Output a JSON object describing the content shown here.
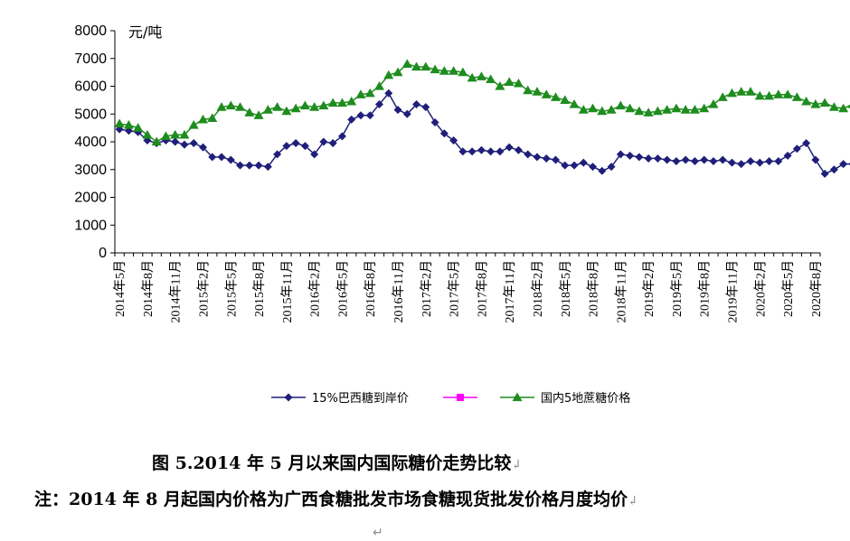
{
  "chart_data": {
    "type": "line",
    "unit_label": "元/吨",
    "ylim": [
      0,
      8000
    ],
    "y_ticks": [
      "0",
      "1000",
      "2000",
      "3000",
      "4000",
      "5000",
      "6000",
      "7000",
      "8000"
    ],
    "x_tick_labels": [
      "2014年5月",
      "2014年8月",
      "2014年11月",
      "2015年2月",
      "2015年5月",
      "2015年8月",
      "2015年11月",
      "2016年2月",
      "2016年5月",
      "2016年8月",
      "2016年11月",
      "2017年2月",
      "2017年5月",
      "2017年8月",
      "2017年11月",
      "2018年2月",
      "2018年5月",
      "2018年8月",
      "2018年11月",
      "2019年2月",
      "2019年5月",
      "2019年8月",
      "2019年11月",
      "2020年2月",
      "2020年5月",
      "2020年8月"
    ],
    "grid": false,
    "legend_position": "bottom",
    "series": [
      {
        "name": "15%巴西糖到岸价",
        "color": "#1f1f7a",
        "marker": "diamond",
        "values": [
          4450,
          4400,
          4350,
          4050,
          3950,
          4050,
          4000,
          3900,
          3950,
          3800,
          3450,
          3450,
          3350,
          3150,
          3150,
          3150,
          3100,
          3550,
          3850,
          3950,
          3850,
          3550,
          4000,
          3950,
          4200,
          4800,
          4950,
          4950,
          5350,
          5750,
          5150,
          5000,
          5350,
          5250,
          4700,
          4300,
          4050,
          3650,
          3650,
          3700,
          3650,
          3650,
          3800,
          3700,
          3550,
          3450,
          3400,
          3350,
          3150,
          3150,
          3250,
          3100,
          2950,
          3100,
          3550,
          3500,
          3450,
          3400,
          3400,
          3350,
          3300,
          3350,
          3300,
          3350,
          3300,
          3350,
          3250,
          3200,
          3300,
          3250,
          3300,
          3300,
          3500,
          3750,
          3950,
          3350,
          2850,
          3000,
          3200,
          3200,
          3350,
          3300
        ]
      },
      {
        "name": "",
        "color": "#ff00ff",
        "marker": "square",
        "values": []
      },
      {
        "name": "国内5地蔗糖价格",
        "color": "#1e8c1e",
        "marker": "triangle",
        "values": [
          4650,
          4600,
          4500,
          4250,
          4000,
          4200,
          4250,
          4250,
          4600,
          4800,
          4850,
          5250,
          5300,
          5250,
          5050,
          4950,
          5150,
          5250,
          5100,
          5200,
          5300,
          5250,
          5300,
          5400,
          5400,
          5450,
          5700,
          5750,
          6000,
          6400,
          6500,
          6800,
          6700,
          6700,
          6600,
          6550,
          6550,
          6500,
          6300,
          6350,
          6250,
          6000,
          6150,
          6100,
          5850,
          5800,
          5700,
          5600,
          5500,
          5350,
          5150,
          5200,
          5100,
          5150,
          5300,
          5200,
          5100,
          5050,
          5100,
          5150,
          5200,
          5150,
          5150,
          5200,
          5350,
          5600,
          5750,
          5800,
          5800,
          5650,
          5650,
          5700,
          5700,
          5600,
          5450,
          5350,
          5400,
          5250,
          5200,
          5350
        ]
      }
    ]
  },
  "captions": {
    "figure_title": "图 5.2014 年 5 月以来国内国际糖价走势比较",
    "note": "注：2014 年 8 月起国内价格为广西食糖批发市场食糖现货批发价格月度均价",
    "para_mark": "↵",
    "trailing_mark": "↲"
  }
}
